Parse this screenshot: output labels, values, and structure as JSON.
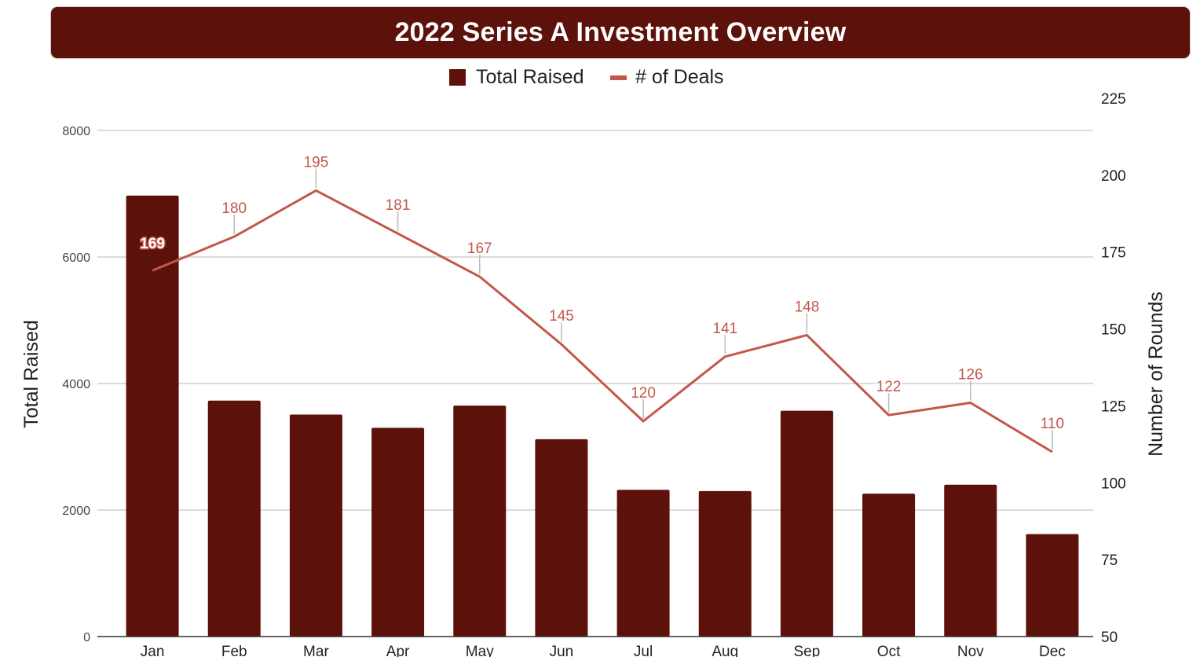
{
  "title": "2022 Series A Investment Overview",
  "colors": {
    "banner": "#5c110b",
    "bar": "#5c110b",
    "line": "#c3574a",
    "grid": "#cfcfcf"
  },
  "legend": {
    "bar_label": "Total Raised",
    "line_label": "# of Deals",
    "placement": "top-center"
  },
  "chart_data": {
    "type": "bar",
    "title": "2022 Series A Investment Overview",
    "categories": [
      "Jan",
      "Feb",
      "Mar",
      "Apr",
      "May",
      "Jun",
      "Jul",
      "Aug",
      "Sep",
      "Oct",
      "Nov",
      "Dec"
    ],
    "series": [
      {
        "name": "Total Raised",
        "type": "bar",
        "axis": "left",
        "values": [
          6970,
          3730,
          3510,
          3300,
          3650,
          3120,
          2320,
          2300,
          3570,
          2260,
          2400,
          1620
        ]
      },
      {
        "name": "# of Deals",
        "type": "line",
        "axis": "right",
        "values": [
          169,
          180,
          195,
          181,
          167,
          145,
          120,
          141,
          148,
          122,
          126,
          110
        ],
        "data_labels": [
          "169",
          "180",
          "195",
          "181",
          "167",
          "145",
          "120",
          "141",
          "148",
          "122",
          "126",
          "110"
        ]
      }
    ],
    "ylabel": "Total Raised",
    "ylim": [
      0,
      8000
    ],
    "yticks": [
      "0",
      "2000",
      "4000",
      "6000",
      "8000"
    ],
    "y2label": "Number of Rounds",
    "y2lim": [
      50,
      225
    ],
    "y2ticks": [
      "50",
      "75",
      "100",
      "125",
      "150",
      "175",
      "200",
      "225"
    ],
    "grid": true
  }
}
